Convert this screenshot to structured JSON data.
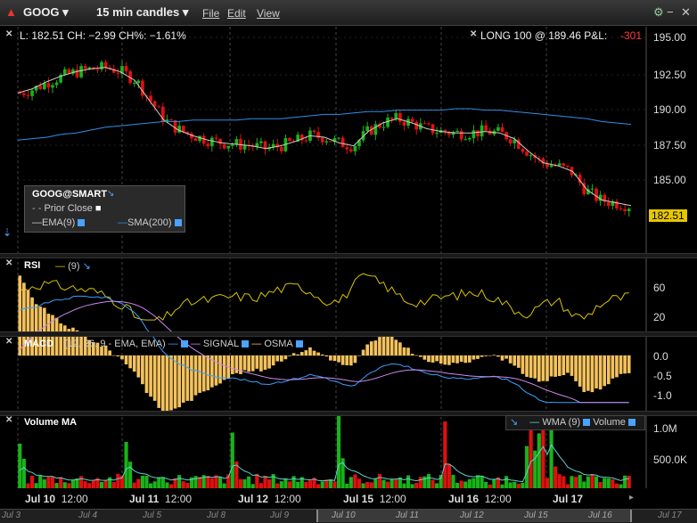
{
  "toolbar": {
    "symbol": "GOOG",
    "interval": "15 min candles",
    "menus": [
      "File",
      "Edit",
      "View"
    ]
  },
  "quote": {
    "last_label": "L: 182.51 CH: −2.99 CH%: −1.61%",
    "position_label": "LONG 100 @ 189.46 P&L:",
    "pnl": "-301",
    "last_price_tag": "182.51"
  },
  "legend": {
    "title": "GOOG@SMART",
    "prior_close": "Prior Close",
    "ema": "EMA(9)",
    "sma": "SMA(200)"
  },
  "price_axis": [
    "195.00",
    "192.50",
    "190.00",
    "187.50",
    "185.00"
  ],
  "rsi": {
    "label": "RSI",
    "param": "(9)",
    "axis": [
      "60",
      "20"
    ]
  },
  "macd": {
    "label": "MACD",
    "params": "(12, 26, 9 - EMA, EMA)",
    "signal": "SIGNAL",
    "osma": "OSMA",
    "axis": [
      "0.0",
      "-0.5",
      "-1.0"
    ]
  },
  "volume": {
    "label": "Volume MA",
    "legend": "WMA (9)",
    "legend2": "Volume",
    "axis": [
      "1.0M",
      "500.0K"
    ]
  },
  "dates": [
    {
      "day": "Jul 10",
      "time": "12:00"
    },
    {
      "day": "Jul 11",
      "time": "12:00"
    },
    {
      "day": "Jul 12",
      "time": "12:00"
    },
    {
      "day": "Jul 15",
      "time": "12:00"
    },
    {
      "day": "Jul 16",
      "time": "12:00"
    },
    {
      "day": "Jul 17",
      "time": ""
    }
  ],
  "navigator": [
    "Jul 3",
    "Jul 4",
    "Jul 5",
    "Jul 8",
    "Jul 9",
    "Jul 10",
    "Jul 11",
    "Jul 12",
    "Jul 15",
    "Jul 16",
    "Jul 17"
  ],
  "colors": {
    "up": "#19b319",
    "down": "#e01010",
    "ema": "#cccccc",
    "sma": "#2f8fe8",
    "rsi": "#d8c400",
    "osma": "#f4c25c",
    "macd": "#3aa0ff",
    "signal": "#cc88ee",
    "wma": "#5fd0d0"
  },
  "chart_data": {
    "type": "line",
    "title": "GOOG",
    "price_ylim": [
      183.4,
      195.8
    ],
    "ema9": [
      191.1,
      191.4,
      191.9,
      192.3,
      192.6,
      192.8,
      192.9,
      192.6,
      192.0,
      190.6,
      189.2,
      188.5,
      188.1,
      187.8,
      187.6,
      187.5,
      187.4,
      187.2,
      187.4,
      187.7,
      188.1,
      188.0,
      187.6,
      187.4,
      188.4,
      189.0,
      189.3,
      189.0,
      188.6,
      188.4,
      188.3,
      188.3,
      188.4,
      188.3,
      187.9,
      187.0,
      186.2,
      186.0,
      185.6,
      184.3,
      183.6,
      183.4,
      183.2
    ],
    "sma200": [
      187.8,
      187.9,
      188.0,
      188.2,
      188.3,
      188.5,
      188.7,
      188.8,
      188.9,
      189.0,
      189.1,
      189.1,
      189.2,
      189.2,
      189.2,
      189.2,
      189.3,
      189.3,
      189.3,
      189.4,
      189.5,
      189.6,
      189.6,
      189.7,
      189.8,
      189.8,
      189.9,
      189.9,
      189.9,
      189.9,
      190.0,
      190.0,
      189.9,
      189.9,
      189.8,
      189.7,
      189.6,
      189.5,
      189.4,
      189.3,
      189.1,
      189.0,
      188.9
    ],
    "volume_ylim": [
      0,
      1200000
    ]
  }
}
